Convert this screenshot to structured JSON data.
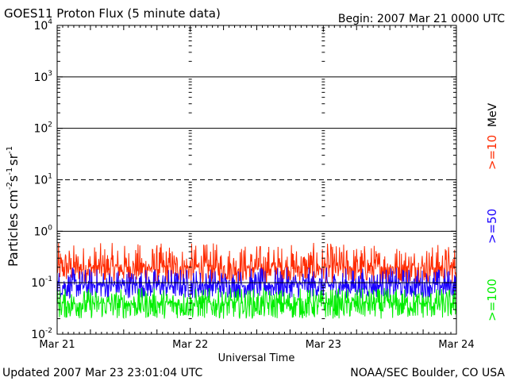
{
  "header": {
    "title": "GOES11 Proton Flux (5 minute data)",
    "begin": "Begin: 2007 Mar 21 0000 UTC"
  },
  "footer": {
    "updated": "Updated 2007 Mar 23 23:01:04 UTC",
    "source": "NOAA/SEC Boulder, CO USA"
  },
  "colors": {
    "gt10": "#ff2a00",
    "gt50": "#1a00ff",
    "gt100": "#00ee00",
    "axis": "#000000"
  },
  "chart_data": {
    "type": "line",
    "title": "GOES11 Proton Flux (5 minute data)",
    "xlabel": "Universal Time",
    "ylabel_main": "Particles cm",
    "ylabel_exp1": "-2",
    "ylabel_mid1": "s",
    "ylabel_exp2": "-1",
    "ylabel_mid2": "sr",
    "ylabel_exp3": "-1",
    "y_scale": "log",
    "ylim": [
      0.01,
      10000
    ],
    "xlim_days": [
      0,
      3
    ],
    "x_tick_labels": [
      "Mar 21",
      "Mar 22",
      "Mar 23",
      "Mar 24"
    ],
    "y_ticks": [
      {
        "value": 10000,
        "base": "10",
        "exp": "4"
      },
      {
        "value": 1000,
        "base": "10",
        "exp": "3"
      },
      {
        "value": 100,
        "base": "10",
        "exp": "2"
      },
      {
        "value": 10,
        "base": "10",
        "exp": "1"
      },
      {
        "value": 1,
        "base": "10",
        "exp": "0"
      },
      {
        "value": 0.1,
        "base": "10",
        "exp": "-1"
      },
      {
        "value": 0.01,
        "base": "10",
        "exp": "-2"
      }
    ],
    "threshold_lines": [
      {
        "value": 1000,
        "style": "solid"
      },
      {
        "value": 100,
        "style": "solid"
      },
      {
        "value": 10,
        "style": "dashed"
      },
      {
        "value": 1,
        "style": "solid"
      },
      {
        "value": 0.1,
        "style": "solid"
      }
    ],
    "units_label": "MeV",
    "series": [
      {
        "name": ">=10",
        "typical": 0.2,
        "min": 0.1,
        "max": 0.6
      },
      {
        "name": ">=50",
        "typical": 0.09,
        "min": 0.05,
        "max": 0.2
      },
      {
        "name": ">=100",
        "typical": 0.04,
        "min": 0.02,
        "max": 0.08
      }
    ]
  }
}
